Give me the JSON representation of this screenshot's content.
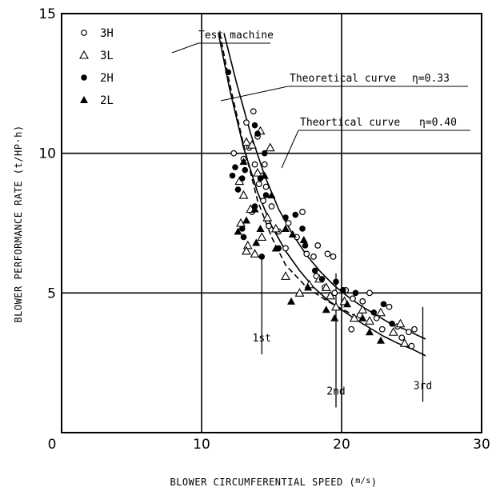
{
  "chart_data": {
    "type": "scatter",
    "title": "",
    "xlabel": "BLOWER CIRCUMFERENTIAL SPEED (m/s)",
    "ylabel": "BLOWER PERFORMANCE RATE (t/HP·h)",
    "xlim": [
      0,
      30
    ],
    "ylim": [
      0,
      15
    ],
    "x_ticks": [
      "0",
      "10",
      "20",
      "30"
    ],
    "y_ticks": [
      "5",
      "10",
      "15"
    ],
    "grid": true,
    "legend_position": "top-left",
    "series": [
      {
        "name": "3H",
        "marker": "open-circle",
        "points": [
          [
            12.3,
            10.0
          ],
          [
            13.0,
            9.8
          ],
          [
            13.4,
            10.2
          ],
          [
            13.7,
            11.5
          ],
          [
            14.0,
            10.6
          ],
          [
            14.3,
            9.2
          ],
          [
            13.8,
            9.6
          ],
          [
            14.1,
            8.9
          ],
          [
            14.6,
            8.8
          ],
          [
            14.4,
            8.3
          ],
          [
            15.0,
            8.1
          ],
          [
            14.8,
            7.4
          ],
          [
            13.6,
            7.9
          ],
          [
            15.5,
            7.2
          ],
          [
            16.2,
            7.5
          ],
          [
            17.2,
            7.9
          ],
          [
            16.8,
            7.0
          ],
          [
            16.0,
            6.6
          ],
          [
            17.5,
            6.4
          ],
          [
            18.0,
            6.3
          ],
          [
            18.3,
            6.7
          ],
          [
            19.0,
            6.4
          ],
          [
            19.4,
            6.3
          ],
          [
            18.2,
            5.6
          ],
          [
            18.8,
            5.2
          ],
          [
            19.5,
            5.0
          ],
          [
            20.3,
            5.1
          ],
          [
            20.8,
            4.8
          ],
          [
            21.5,
            4.7
          ],
          [
            22.0,
            5.0
          ],
          [
            21.3,
            4.2
          ],
          [
            20.7,
            3.7
          ],
          [
            22.5,
            4.1
          ],
          [
            22.9,
            3.7
          ],
          [
            23.4,
            4.5
          ],
          [
            24.0,
            3.8
          ],
          [
            24.3,
            3.4
          ],
          [
            24.8,
            3.6
          ],
          [
            25.2,
            3.7
          ],
          [
            25.0,
            3.1
          ],
          [
            13.2,
            11.1
          ],
          [
            14.5,
            9.6
          ]
        ]
      },
      {
        "name": "3L",
        "marker": "open-triangle",
        "points": [
          [
            13.2,
            10.4
          ],
          [
            13.6,
            10.3
          ],
          [
            14.0,
            9.3
          ],
          [
            13.0,
            8.5
          ],
          [
            13.5,
            8.0
          ],
          [
            12.8,
            7.5
          ],
          [
            14.3,
            7.0
          ],
          [
            14.7,
            7.7
          ],
          [
            13.3,
            6.7
          ],
          [
            13.8,
            6.4
          ],
          [
            13.2,
            6.5
          ],
          [
            14.2,
            10.8
          ],
          [
            14.9,
            10.2
          ],
          [
            15.3,
            7.3
          ],
          [
            16.0,
            5.6
          ],
          [
            17.0,
            5.0
          ],
          [
            17.7,
            5.3
          ],
          [
            18.4,
            5.5
          ],
          [
            18.9,
            5.2
          ],
          [
            19.2,
            4.9
          ],
          [
            19.6,
            4.5
          ],
          [
            20.2,
            4.7
          ],
          [
            20.9,
            4.1
          ],
          [
            21.5,
            4.4
          ],
          [
            22.0,
            4.0
          ],
          [
            22.8,
            4.3
          ],
          [
            23.7,
            3.6
          ],
          [
            24.2,
            3.9
          ],
          [
            24.5,
            3.2
          ],
          [
            12.7,
            9.0
          ]
        ]
      },
      {
        "name": "2H",
        "marker": "filled-circle",
        "points": [
          [
            11.9,
            12.9
          ],
          [
            13.8,
            11.0
          ],
          [
            14.0,
            10.7
          ],
          [
            12.4,
            9.5
          ],
          [
            12.9,
            9.1
          ],
          [
            13.1,
            9.4
          ],
          [
            14.2,
            9.1
          ],
          [
            14.5,
            10.0
          ],
          [
            12.6,
            8.7
          ],
          [
            13.8,
            8.1
          ],
          [
            14.6,
            8.5
          ],
          [
            12.9,
            7.3
          ],
          [
            13.0,
            7.0
          ],
          [
            14.3,
            6.3
          ],
          [
            15.5,
            6.6
          ],
          [
            16.0,
            7.7
          ],
          [
            16.7,
            7.8
          ],
          [
            17.2,
            7.3
          ],
          [
            17.4,
            6.7
          ],
          [
            18.1,
            5.8
          ],
          [
            18.6,
            5.5
          ],
          [
            19.6,
            5.4
          ],
          [
            20.1,
            5.1
          ],
          [
            21.0,
            5.0
          ],
          [
            22.3,
            4.3
          ],
          [
            23.0,
            4.6
          ],
          [
            23.6,
            3.9
          ],
          [
            12.2,
            9.2
          ]
        ]
      },
      {
        "name": "2L",
        "marker": "filled-triangle",
        "points": [
          [
            14.5,
            9.2
          ],
          [
            13.8,
            8.0
          ],
          [
            13.2,
            7.6
          ],
          [
            12.6,
            7.2
          ],
          [
            14.2,
            7.3
          ],
          [
            13.9,
            6.8
          ],
          [
            15.0,
            8.5
          ],
          [
            16.0,
            7.3
          ],
          [
            16.5,
            7.1
          ],
          [
            17.3,
            6.9
          ],
          [
            17.6,
            5.2
          ],
          [
            16.4,
            4.7
          ],
          [
            18.9,
            4.4
          ],
          [
            19.5,
            4.1
          ],
          [
            20.4,
            4.6
          ],
          [
            21.5,
            4.1
          ],
          [
            22.0,
            3.6
          ],
          [
            22.8,
            3.3
          ],
          [
            13.0,
            9.7
          ],
          [
            15.3,
            6.6
          ]
        ]
      }
    ],
    "curves": [
      {
        "name": "Test machine",
        "style": "dashed",
        "points": [
          [
            11.3,
            14.3
          ],
          [
            12.0,
            12.5
          ],
          [
            13.0,
            10.3
          ],
          [
            14.0,
            8.3
          ],
          [
            15.0,
            7.0
          ],
          [
            16.0,
            6.0
          ],
          [
            17.5,
            5.2
          ],
          [
            19.0,
            4.7
          ],
          [
            20.5,
            4.3
          ],
          [
            22.0,
            3.9
          ]
        ]
      },
      {
        "name": "Theoretical curve η=0.33",
        "style": "solid",
        "points": [
          [
            11.6,
            14.3
          ],
          [
            12.5,
            12.5
          ],
          [
            13.5,
            10.7
          ],
          [
            14.5,
            9.2
          ],
          [
            15.5,
            8.0
          ],
          [
            16.5,
            7.1
          ],
          [
            17.5,
            6.35
          ],
          [
            18.5,
            5.75
          ],
          [
            19.5,
            5.25
          ],
          [
            20.5,
            4.85
          ],
          [
            21.5,
            4.5
          ],
          [
            22.5,
            4.2
          ],
          [
            23.5,
            3.9
          ],
          [
            24.5,
            3.7
          ],
          [
            26.0,
            3.35
          ]
        ]
      },
      {
        "name": "Theortical curve η=0.40",
        "style": "solid",
        "points": [
          [
            11.2,
            14.3
          ],
          [
            12.0,
            12.3
          ],
          [
            13.0,
            10.2
          ],
          [
            14.0,
            8.6
          ],
          [
            15.0,
            7.4
          ],
          [
            16.0,
            6.5
          ],
          [
            17.0,
            5.8
          ],
          [
            18.0,
            5.2
          ],
          [
            19.0,
            4.75
          ],
          [
            20.0,
            4.4
          ],
          [
            21.0,
            4.05
          ],
          [
            22.0,
            3.75
          ],
          [
            23.0,
            3.45
          ],
          [
            24.0,
            3.2
          ],
          [
            25.0,
            3.0
          ],
          [
            26.0,
            2.75
          ]
        ]
      }
    ],
    "vertical_markers": [
      {
        "label": "1st",
        "x": 14.3,
        "y_range": [
          2.8,
          6.2
        ]
      },
      {
        "label": "2nd",
        "x": 19.6,
        "y_range": [
          0.9,
          5.7
        ]
      },
      {
        "label": "3rd",
        "x": 25.8,
        "y_range": [
          1.1,
          4.5
        ]
      }
    ],
    "annotations": {
      "test_machine": "Test machine",
      "curve_033": "Theoretical curve",
      "curve_033_eta": "η=0.33",
      "curve_040": "Theortical curve",
      "curve_040_eta": "η=0.40"
    }
  },
  "labels": {
    "xlabel_main": "BLOWER CIRCUMFERENTIAL SPEED (",
    "xlabel_unit": "m/s",
    "xlabel_close": ")",
    "ylabel_main": "BLOWER PERFORMANCE RATE (",
    "ylabel_unit": "t/HP·h",
    "ylabel_close": ")"
  },
  "legend": [
    {
      "marker": "open-circle",
      "label": "3H"
    },
    {
      "marker": "open-triangle",
      "label": "3L"
    },
    {
      "marker": "filled-circle",
      "label": "2H"
    },
    {
      "marker": "filled-triangle",
      "label": "2L"
    }
  ]
}
